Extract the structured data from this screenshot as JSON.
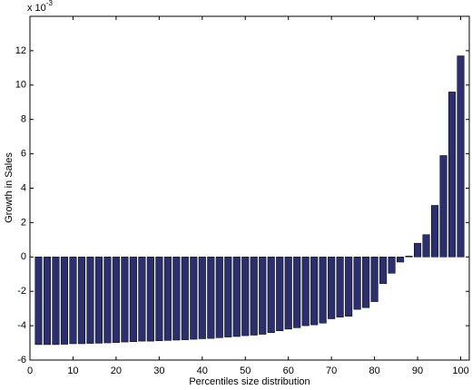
{
  "chart_data": {
    "type": "bar",
    "xlabel": "Percentiles size distribution",
    "ylabel": "Growth in Sales",
    "y_multiplier": "x 10",
    "y_multiplier_exponent": "-3",
    "x": [
      2,
      4,
      6,
      8,
      10,
      12,
      14,
      16,
      18,
      20,
      22,
      24,
      26,
      28,
      30,
      32,
      34,
      36,
      38,
      40,
      42,
      44,
      46,
      48,
      50,
      52,
      54,
      56,
      58,
      60,
      62,
      64,
      66,
      68,
      70,
      72,
      74,
      76,
      78,
      80,
      82,
      84,
      86,
      88,
      90,
      92,
      94,
      96,
      98,
      100
    ],
    "values": [
      -5.1,
      -5.1,
      -5.1,
      -5.08,
      -5.05,
      -5.05,
      -5.03,
      -5.02,
      -5.0,
      -4.98,
      -4.95,
      -4.93,
      -4.9,
      -4.9,
      -4.88,
      -4.86,
      -4.84,
      -4.82,
      -4.79,
      -4.76,
      -4.74,
      -4.7,
      -4.66,
      -4.63,
      -4.58,
      -4.55,
      -4.5,
      -4.4,
      -4.3,
      -4.2,
      -4.12,
      -4.0,
      -3.95,
      -3.85,
      -3.6,
      -3.5,
      -3.45,
      -3.05,
      -2.95,
      -2.6,
      -1.55,
      -0.95,
      -0.3,
      0.05,
      0.8,
      1.3,
      3.0,
      5.9,
      9.6,
      11.7
    ],
    "color": "#2b2f6e",
    "xlim": [
      0,
      102
    ],
    "xticks": [
      0,
      10,
      20,
      30,
      40,
      50,
      60,
      70,
      80,
      90,
      100
    ],
    "ylim": [
      -6,
      14
    ],
    "yticks": [
      -6,
      -4,
      -2,
      0,
      2,
      4,
      6,
      8,
      10,
      12
    ],
    "grid": false
  }
}
